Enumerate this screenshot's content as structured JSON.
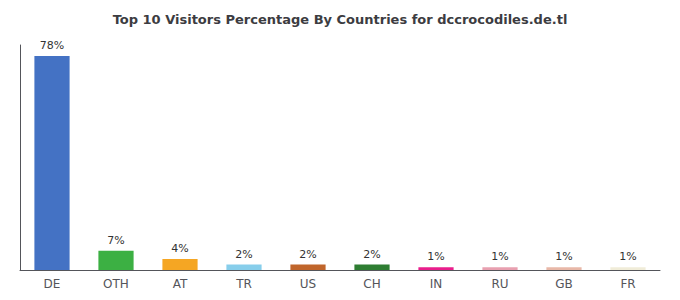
{
  "chart_data": {
    "type": "bar",
    "title": "Top 10 Visitors Percentage By Countries for dccrocodiles.de.tl",
    "categories": [
      "DE",
      "OTH",
      "AT",
      "TR",
      "US",
      "CH",
      "IN",
      "RU",
      "GB",
      "FR"
    ],
    "values": [
      78,
      7,
      4,
      2,
      2,
      2,
      1,
      1,
      1,
      1
    ],
    "value_labels": [
      "78%",
      "7%",
      "4%",
      "2%",
      "2%",
      "2%",
      "1%",
      "1%",
      "1%",
      "1%"
    ],
    "colors": [
      "#4472c4",
      "#3cb043",
      "#f5a623",
      "#87ceeb",
      "#c0652b",
      "#2e7d32",
      "#e91e8c",
      "#e8a0b0",
      "#e8b8a8",
      "#f0ecd8"
    ],
    "ylim": [
      0,
      82
    ],
    "grid": false,
    "data_labels": true,
    "tick_labels": "x"
  }
}
